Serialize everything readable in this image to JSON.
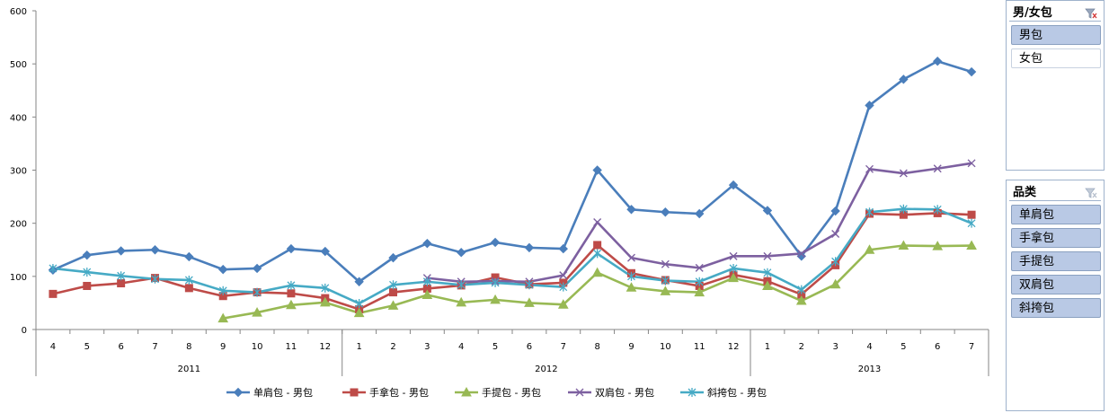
{
  "chart_data": {
    "type": "line",
    "ylim": [
      0,
      600
    ],
    "yticks": [
      0,
      100,
      200,
      300,
      400,
      500,
      600
    ],
    "x": [
      "4",
      "5",
      "6",
      "7",
      "8",
      "9",
      "10",
      "11",
      "12",
      "1",
      "2",
      "3",
      "4",
      "5",
      "6",
      "7",
      "8",
      "9",
      "10",
      "11",
      "12",
      "1",
      "2",
      "3",
      "4",
      "5",
      "6",
      "7"
    ],
    "year_groups": [
      {
        "label": "2011",
        "count": 9
      },
      {
        "label": "2012",
        "count": 12
      },
      {
        "label": "2013",
        "count": 7
      }
    ],
    "grid": false,
    "legend_position": "bottom",
    "series": [
      {
        "name": "单肩包 - 男包",
        "color": "#4a7ebb",
        "marker": "diamond",
        "values": [
          112,
          140,
          148,
          150,
          137,
          113,
          115,
          152,
          147,
          90,
          135,
          162,
          145,
          164,
          154,
          152,
          300,
          226,
          221,
          218,
          272,
          224,
          138,
          223,
          422,
          471,
          505,
          485
        ]
      },
      {
        "name": "手拿包 - 男包",
        "color": "#be4b48",
        "marker": "square",
        "values": [
          67,
          82,
          87,
          97,
          78,
          63,
          70,
          68,
          59,
          38,
          70,
          77,
          83,
          98,
          85,
          88,
          159,
          106,
          93,
          82,
          103,
          91,
          66,
          121,
          218,
          216,
          219,
          216
        ]
      },
      {
        "name": "手提包 - 男包",
        "color": "#98b954",
        "marker": "triangle",
        "values": [
          null,
          null,
          null,
          null,
          null,
          21,
          32,
          46,
          51,
          31,
          45,
          65,
          51,
          56,
          50,
          47,
          107,
          79,
          72,
          70,
          97,
          82,
          54,
          85,
          150,
          158,
          157,
          158
        ]
      },
      {
        "name": "双肩包 - 男包",
        "color": "#7d60a0",
        "marker": "x",
        "values": [
          null,
          null,
          null,
          null,
          null,
          null,
          null,
          null,
          null,
          null,
          null,
          97,
          90,
          91,
          90,
          102,
          202,
          135,
          123,
          116,
          138,
          138,
          143,
          180,
          302,
          294,
          303,
          313
        ]
      },
      {
        "name": "斜挎包 - 男包",
        "color": "#46aac5",
        "marker": "star",
        "values": [
          115,
          108,
          101,
          95,
          93,
          73,
          70,
          83,
          78,
          49,
          84,
          90,
          84,
          88,
          84,
          80,
          143,
          100,
          92,
          90,
          115,
          107,
          75,
          128,
          221,
          227,
          226,
          200
        ]
      }
    ]
  },
  "slicers": [
    {
      "title": "男/女包",
      "items": [
        {
          "label": "男包",
          "selected": true
        },
        {
          "label": "女包",
          "selected": false
        }
      ]
    },
    {
      "title": "品类",
      "items": [
        {
          "label": "单肩包",
          "selected": true
        },
        {
          "label": "手拿包",
          "selected": true
        },
        {
          "label": "手提包",
          "selected": true
        },
        {
          "label": "双肩包",
          "selected": true
        },
        {
          "label": "斜挎包",
          "selected": true
        }
      ]
    }
  ],
  "icons": {
    "clear_filter": "clear-filter-icon"
  }
}
